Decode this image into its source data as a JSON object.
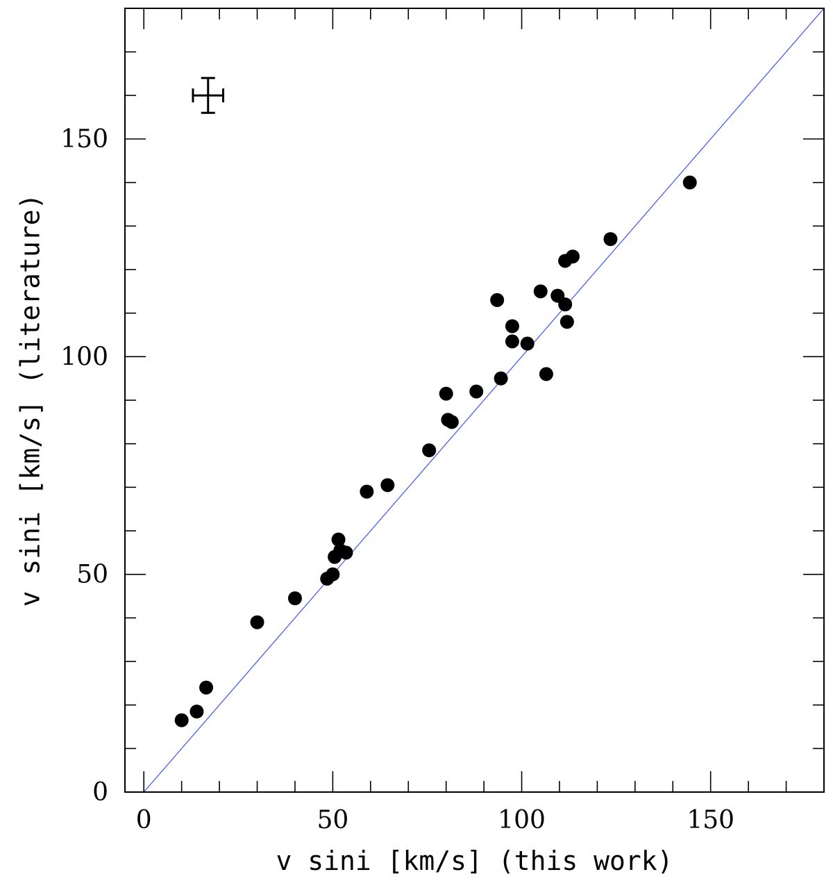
{
  "chart_data": {
    "type": "scatter",
    "xlabel": "v sini [km/s] (this work)",
    "ylabel": "v sini [km/s] (literature)",
    "xlim": [
      -5,
      180
    ],
    "ylim": [
      0,
      180
    ],
    "xticks_major": [
      0,
      50,
      100,
      150
    ],
    "yticks_major": [
      0,
      50,
      100,
      150
    ],
    "xticks_minor_step": 10,
    "yticks_minor_step": 10,
    "grid": false,
    "reference_line": {
      "kind": "one-to-one",
      "color": "#4a5ef0"
    },
    "marker_color": "#000000",
    "error_bar_sample": {
      "x": 17,
      "y": 160,
      "xerr": 4,
      "yerr": 4
    },
    "points": [
      {
        "x": 10,
        "y": 16.5
      },
      {
        "x": 14,
        "y": 18.5
      },
      {
        "x": 16.5,
        "y": 24
      },
      {
        "x": 30,
        "y": 39
      },
      {
        "x": 40,
        "y": 44.5
      },
      {
        "x": 48.5,
        "y": 49
      },
      {
        "x": 50,
        "y": 50
      },
      {
        "x": 50.5,
        "y": 54
      },
      {
        "x": 51.5,
        "y": 58
      },
      {
        "x": 52,
        "y": 55.5
      },
      {
        "x": 53.5,
        "y": 55
      },
      {
        "x": 59,
        "y": 69
      },
      {
        "x": 64.5,
        "y": 70.5
      },
      {
        "x": 75.5,
        "y": 78.5
      },
      {
        "x": 80,
        "y": 91.5
      },
      {
        "x": 80.5,
        "y": 85.5
      },
      {
        "x": 81.5,
        "y": 85
      },
      {
        "x": 88,
        "y": 92
      },
      {
        "x": 93.5,
        "y": 113
      },
      {
        "x": 94.5,
        "y": 95
      },
      {
        "x": 97.5,
        "y": 107
      },
      {
        "x": 97.5,
        "y": 103.5
      },
      {
        "x": 101.5,
        "y": 103
      },
      {
        "x": 105,
        "y": 115
      },
      {
        "x": 106.5,
        "y": 96
      },
      {
        "x": 109.5,
        "y": 114
      },
      {
        "x": 111.5,
        "y": 122
      },
      {
        "x": 111.5,
        "y": 112
      },
      {
        "x": 112,
        "y": 108
      },
      {
        "x": 113.5,
        "y": 123
      },
      {
        "x": 123.5,
        "y": 127
      },
      {
        "x": 144.5,
        "y": 140
      }
    ]
  }
}
